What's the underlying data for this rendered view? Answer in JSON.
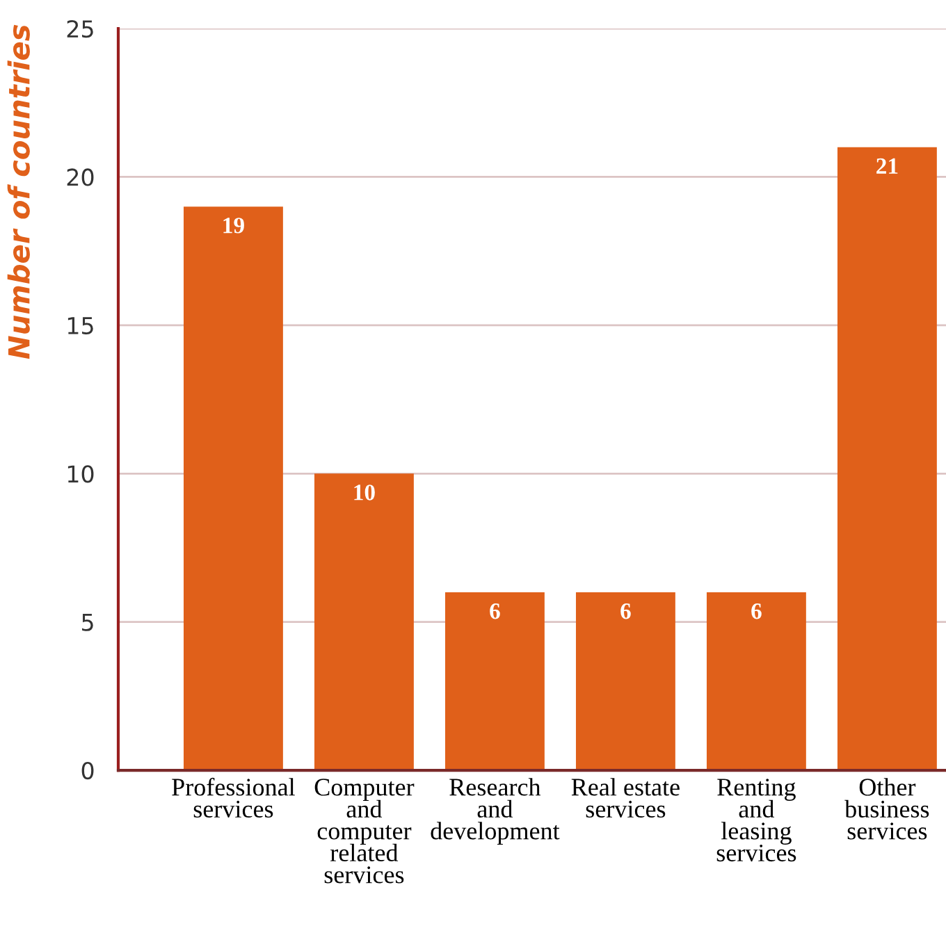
{
  "chart_data": {
    "type": "bar",
    "ylabel": "Number of countries",
    "categories": [
      "Professional\nservices",
      "Computer\nand\ncomputer\nrelated\nservices",
      "Research\nand\ndevelopment",
      "Real estate\nservices",
      "Renting\nand\nleasing\nservices",
      "Other\nbusiness\nservices"
    ],
    "values": [
      19,
      10,
      6,
      6,
      6,
      21
    ],
    "color": "#e0601a",
    "data_labels": true,
    "ylim": [
      0,
      25
    ],
    "yticks": [
      0,
      5,
      10,
      15,
      20,
      25
    ],
    "grid": "y"
  }
}
